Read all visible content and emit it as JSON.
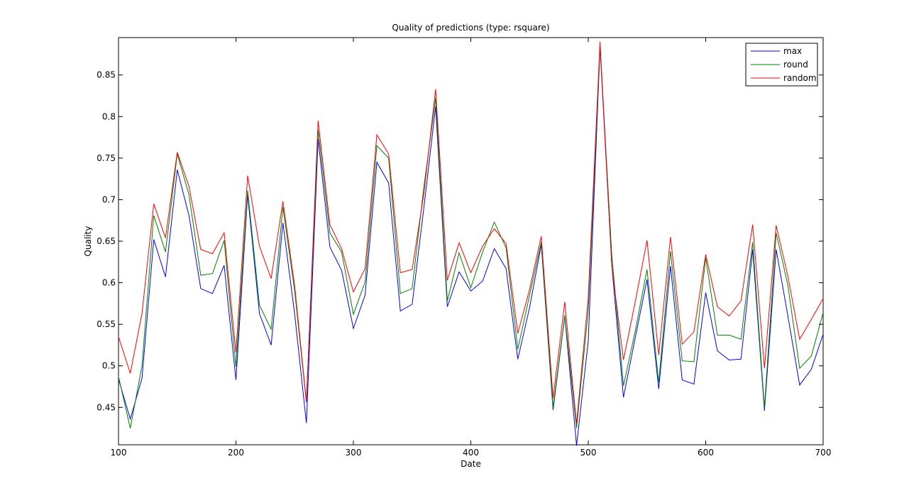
{
  "chart_data": {
    "type": "line",
    "title": "Quality of predictions (type: rsquare)",
    "xlabel": "Date",
    "ylabel": "Quality",
    "xlim": [
      100,
      700
    ],
    "ylim": [
      0.405,
      0.895
    ],
    "xticks": [
      100,
      200,
      300,
      400,
      500,
      600,
      700
    ],
    "yticks": [
      0.45,
      0.5,
      0.55,
      0.6,
      0.65,
      0.7,
      0.75,
      0.8,
      0.85
    ],
    "ytick_labels": [
      "0.45",
      "0.5",
      "0.55",
      "0.6",
      "0.65",
      "0.7",
      "0.75",
      "0.8",
      "0.85"
    ],
    "grid": false,
    "legend_position": "top-right",
    "x": [
      100,
      110,
      120,
      130,
      140,
      150,
      160,
      170,
      180,
      190,
      200,
      210,
      220,
      230,
      240,
      250,
      260,
      270,
      280,
      290,
      300,
      310,
      320,
      330,
      340,
      350,
      360,
      370,
      380,
      390,
      400,
      410,
      420,
      430,
      440,
      450,
      460,
      470,
      480,
      490,
      500,
      510,
      520,
      530,
      540,
      550,
      560,
      570,
      580,
      590,
      600,
      610,
      620,
      630,
      640,
      650,
      660,
      670,
      680,
      690,
      700
    ],
    "series": [
      {
        "name": "max",
        "color": "#0000ff",
        "values": [
          0.484,
          0.436,
          0.485,
          0.652,
          0.607,
          0.736,
          0.681,
          0.593,
          0.587,
          0.621,
          0.483,
          0.706,
          0.563,
          0.525,
          0.672,
          0.562,
          0.431,
          0.773,
          0.643,
          0.615,
          0.545,
          0.585,
          0.745,
          0.72,
          0.566,
          0.574,
          0.69,
          0.812,
          0.571,
          0.613,
          0.59,
          0.602,
          0.641,
          0.617,
          0.508,
          0.57,
          0.646,
          0.447,
          0.56,
          0.404,
          0.53,
          0.884,
          0.622,
          0.462,
          0.534,
          0.604,
          0.472,
          0.62,
          0.483,
          0.478,
          0.588,
          0.518,
          0.507,
          0.508,
          0.64,
          0.446,
          0.64,
          0.56,
          0.477,
          0.496,
          0.538
        ]
      },
      {
        "name": "round",
        "color": "#008000",
        "values": [
          0.487,
          0.425,
          0.5,
          0.681,
          0.637,
          0.755,
          0.706,
          0.609,
          0.611,
          0.651,
          0.499,
          0.711,
          0.573,
          0.544,
          0.691,
          0.59,
          0.456,
          0.784,
          0.66,
          0.637,
          0.562,
          0.601,
          0.765,
          0.75,
          0.587,
          0.593,
          0.715,
          0.822,
          0.578,
          0.636,
          0.594,
          0.637,
          0.673,
          0.642,
          0.52,
          0.585,
          0.649,
          0.45,
          0.561,
          0.425,
          0.567,
          0.885,
          0.634,
          0.476,
          0.542,
          0.616,
          0.48,
          0.638,
          0.506,
          0.505,
          0.63,
          0.537,
          0.537,
          0.532,
          0.649,
          0.45,
          0.66,
          0.597,
          0.497,
          0.512,
          0.564
        ]
      },
      {
        "name": "random",
        "color": "#ff0000",
        "values": [
          0.535,
          0.491,
          0.563,
          0.695,
          0.654,
          0.757,
          0.716,
          0.64,
          0.635,
          0.66,
          0.516,
          0.729,
          0.644,
          0.605,
          0.698,
          0.596,
          0.457,
          0.795,
          0.67,
          0.641,
          0.589,
          0.617,
          0.778,
          0.755,
          0.612,
          0.616,
          0.707,
          0.833,
          0.603,
          0.648,
          0.612,
          0.644,
          0.665,
          0.647,
          0.539,
          0.592,
          0.656,
          0.461,
          0.577,
          0.43,
          0.582,
          0.89,
          0.621,
          0.507,
          0.577,
          0.651,
          0.513,
          0.655,
          0.526,
          0.541,
          0.634,
          0.571,
          0.56,
          0.578,
          0.67,
          0.497,
          0.669,
          0.608,
          0.532,
          0.556,
          0.581
        ]
      }
    ]
  }
}
